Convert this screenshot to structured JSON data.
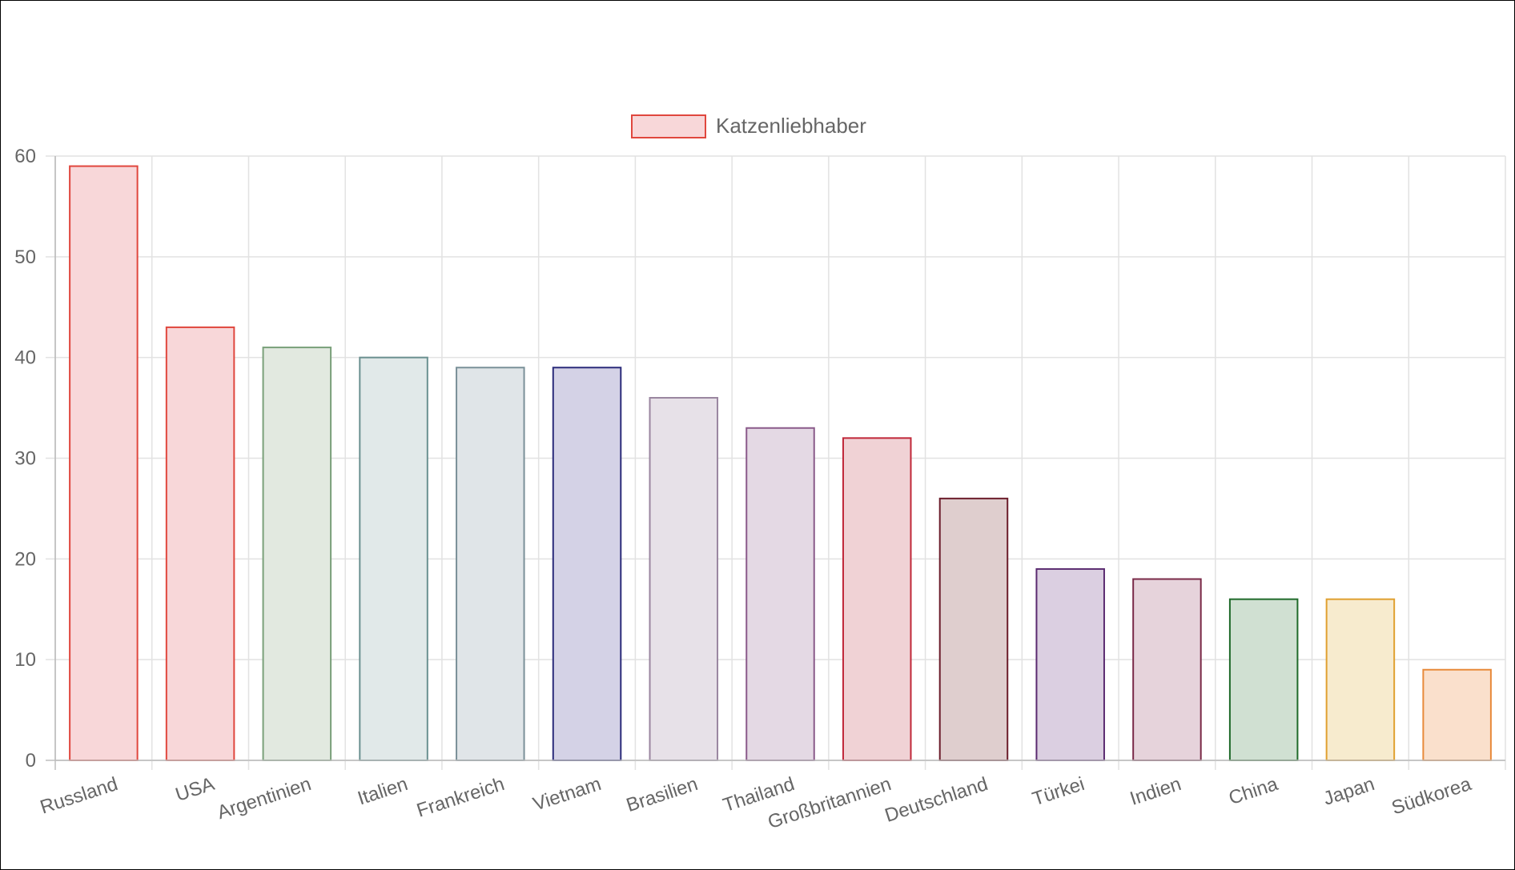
{
  "chart_data": {
    "type": "bar",
    "categories": [
      "Russland",
      "USA",
      "Argentinien",
      "Italien",
      "Frankreich",
      "Vietnam",
      "Brasilien",
      "Thailand",
      "Großbritannien",
      "Deutschland",
      "Türkei",
      "Indien",
      "China",
      "Japan",
      "Südkorea"
    ],
    "series": [
      {
        "name": "Katzenliebhaber",
        "values": [
          59,
          43,
          41,
          40,
          39,
          39,
          36,
          33,
          32,
          26,
          19,
          18,
          16,
          16,
          9
        ]
      }
    ],
    "ylim": [
      0,
      60
    ],
    "yticks": [
      "0",
      "10",
      "20",
      "30",
      "40",
      "50",
      "60"
    ],
    "grid": true,
    "legend_position": "top",
    "legend_color": {
      "fill": "#f8d7d9",
      "stroke": "#e0473e"
    },
    "bar_colors": [
      {
        "fill": "#f8d7d9",
        "stroke": "#e0473e"
      },
      {
        "fill": "#f8d7d9",
        "stroke": "#e0473e"
      },
      {
        "fill": "#e2e9e0",
        "stroke": "#7aa07a"
      },
      {
        "fill": "#e1e9e9",
        "stroke": "#6a9090"
      },
      {
        "fill": "#e0e5e8",
        "stroke": "#7a9098"
      },
      {
        "fill": "#d4d2e6",
        "stroke": "#2b2b7a"
      },
      {
        "fill": "#e7e1e8",
        "stroke": "#9a86a0"
      },
      {
        "fill": "#e4d9e4",
        "stroke": "#8a5a8a"
      },
      {
        "fill": "#f0d2d5",
        "stroke": "#c0283a"
      },
      {
        "fill": "#dfcece",
        "stroke": "#6b1c2a"
      },
      {
        "fill": "#dbcfe1",
        "stroke": "#5a2a70"
      },
      {
        "fill": "#e6d3db",
        "stroke": "#7a2a48"
      },
      {
        "fill": "#d0e0d2",
        "stroke": "#1f6a2a"
      },
      {
        "fill": "#f7ebce",
        "stroke": "#e0a030"
      },
      {
        "fill": "#fae0cc",
        "stroke": "#e88a3a"
      }
    ]
  }
}
